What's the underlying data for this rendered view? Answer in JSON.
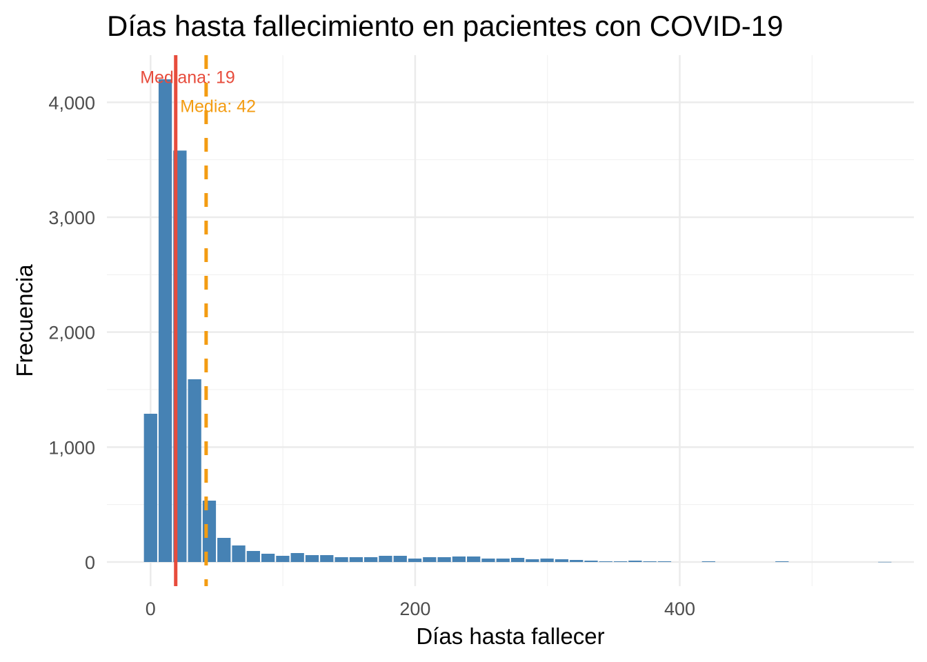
{
  "chart_data": {
    "type": "bar",
    "subtype": "histogram",
    "title": "Días hasta fallecimiento en pacientes con COVID-19",
    "xlabel": "Días hasta fallecer",
    "ylabel": "Frecuencia",
    "xlim": [
      -33,
      577
    ],
    "ylim": [
      -210,
      4410
    ],
    "binwidth": 11.1,
    "x_major_ticks": [
      0,
      200,
      400
    ],
    "x_tick_labels": [
      "0",
      "200",
      "400"
    ],
    "x_minor_ticks": [
      100,
      300,
      500
    ],
    "y_major_ticks": [
      0,
      1000,
      2000,
      3000,
      4000
    ],
    "y_tick_labels": [
      "0",
      "1,000",
      "2,000",
      "3,000",
      "4,000"
    ],
    "y_minor_ticks": [
      500,
      1500,
      2500,
      3500
    ],
    "grid": true,
    "bin_centers_index_note": "bin center = index * binwidth",
    "counts": [
      1290,
      4200,
      3580,
      1590,
      534,
      210,
      144,
      96,
      72,
      54,
      78,
      60,
      60,
      42,
      42,
      42,
      54,
      54,
      30,
      42,
      42,
      48,
      48,
      30,
      30,
      36,
      24,
      30,
      24,
      18,
      12,
      6,
      6,
      12,
      6,
      6,
      0,
      0,
      6,
      0,
      0,
      0,
      0,
      6,
      0,
      0,
      0,
      0,
      0,
      0,
      1
    ],
    "bar_color": "#4682B4",
    "reference_lines": [
      {
        "name": "median",
        "value": 19,
        "color": "#E74C3C",
        "style": "solid",
        "label": "Mediana: 19",
        "label_x": 28,
        "label_y": 4222
      },
      {
        "name": "mean",
        "value": 42,
        "color": "#F39C12",
        "style": "dashed",
        "label": "Media: 42",
        "label_x": 51,
        "label_y": 3970
      }
    ]
  }
}
